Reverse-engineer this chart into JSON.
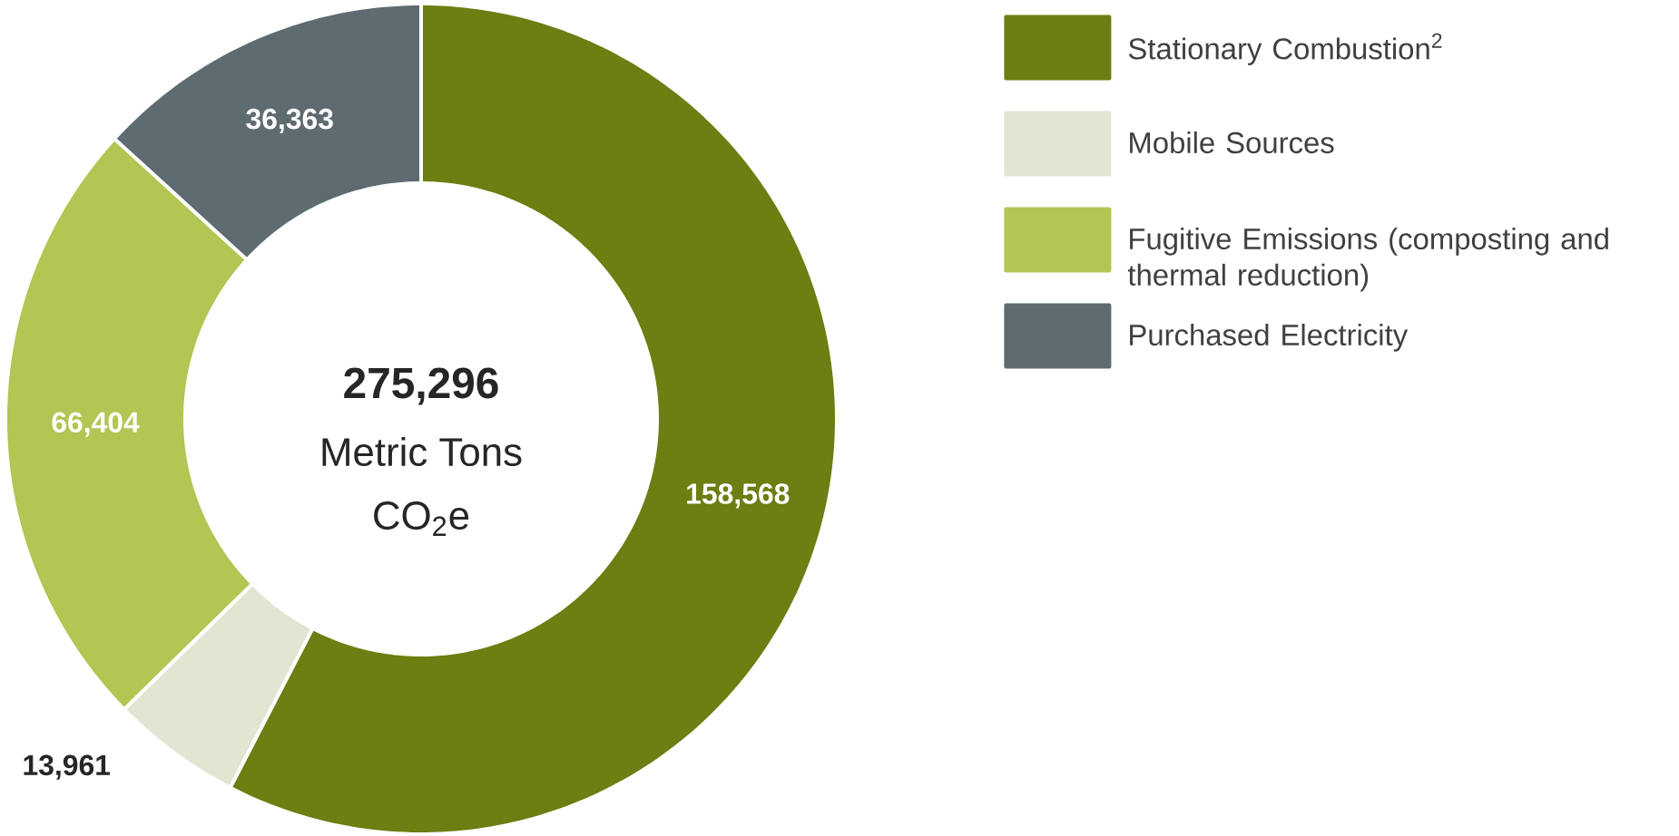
{
  "chart_data": {
    "type": "donut",
    "categories": [
      "Stationary Combustion$^{2}$",
      "Mobile Sources",
      "Fugitive Emissions (composting and thermal reduction)",
      "Purchased Electricity"
    ],
    "values": [
      158568,
      13961,
      66404,
      36363
    ],
    "colors": [
      "#6b7f12",
      "#e1e5d2",
      "#b1c653",
      "#5e6b70"
    ],
    "value_labels": [
      "158,568",
      "13,961",
      "66,404",
      "36,363"
    ],
    "annotations": [
      "**275,296**",
      "Metric Tons",
      "CO$_{2}$e"
    ],
    "legend": "right"
  }
}
